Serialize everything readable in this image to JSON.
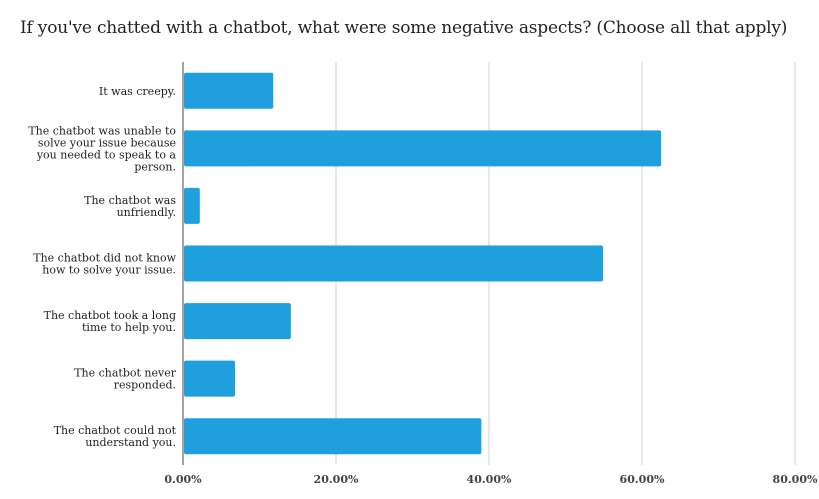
{
  "chart_data": {
    "type": "bar",
    "orientation": "horizontal",
    "title": "If you've chatted with a chatbot, what were some negative aspects? (Choose all that apply)",
    "categories": [
      "It was creepy.",
      "The chatbot was unable to solve your issue because you needed to speak to a person.",
      "The chatbot was unfriendly.",
      "The chatbot did not know how to solve your issue.",
      "The chatbot took a long time to help you.",
      "The chatbot never responded.",
      "The chatbot could not understand you."
    ],
    "category_lines": [
      [
        "It was creepy."
      ],
      [
        "The chatbot was unable to",
        "solve your issue because",
        "you needed to speak to a",
        "person."
      ],
      [
        "The chatbot was",
        "unfriendly."
      ],
      [
        "The chatbot did not know",
        "how to solve your issue."
      ],
      [
        "The chatbot took a long",
        "time to help you."
      ],
      [
        "The chatbot never",
        "responded."
      ],
      [
        "The chatbot could not",
        "understand you."
      ]
    ],
    "values": [
      11.8,
      62.5,
      2.2,
      54.9,
      14.1,
      6.8,
      39.0
    ],
    "xlim": [
      0,
      80
    ],
    "xticks": [
      0,
      20,
      40,
      60,
      80
    ],
    "xtick_labels": [
      "0.00%",
      "20.00%",
      "40.00%",
      "60.00%",
      "80.00%"
    ],
    "bar_color": "#1f9fdc",
    "grid_color": "#d0d0d0",
    "grid": true,
    "legend": "none"
  }
}
